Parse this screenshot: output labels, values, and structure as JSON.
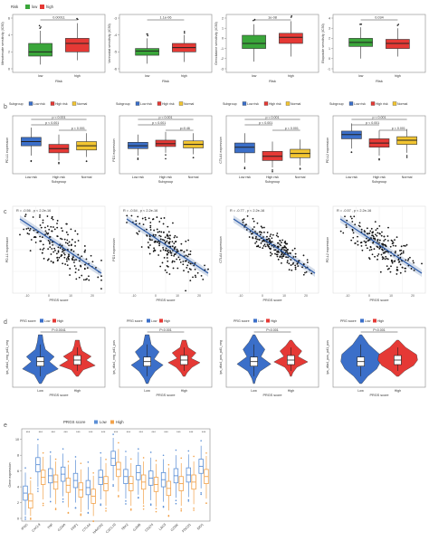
{
  "row_a": {
    "legend_title": "Risk",
    "legend_low": "low",
    "legend_high": "high",
    "xlabel": "Risk",
    "categories": [
      "low",
      "high"
    ],
    "colors": [
      "#3aa63a",
      "#e53935"
    ],
    "panels": [
      {
        "ylabel": "Mesotrexate sensitivity (IC50)",
        "pval": "0.00011",
        "ylim": [
          0,
          6
        ],
        "ticks": [
          0,
          2,
          4,
          6
        ],
        "boxes": [
          [
            0.5,
            1.5,
            2.0,
            3.0,
            4.5
          ],
          [
            1.0,
            2.0,
            3.0,
            3.6,
            5.4
          ]
        ]
      },
      {
        "ylabel": "Vorinostat sensitivity (IC50)",
        "pval": "1.1e-06",
        "ylim": [
          -6,
          -3
        ],
        "ticks": [
          -6,
          -5,
          -4,
          -3
        ],
        "boxes": [
          [
            -5.7,
            -5.2,
            -4.95,
            -4.8,
            -4.2
          ],
          [
            -5.6,
            -5.0,
            -4.75,
            -4.5,
            -4.0
          ]
        ]
      },
      {
        "ylabel": "Gemcitabine sensitivity (IC50)",
        "pval": "1e-08",
        "ylim": [
          -3,
          2
        ],
        "ticks": [
          -3,
          -2,
          -1,
          0,
          1,
          2
        ],
        "boxes": [
          [
            -2.3,
            -1.0,
            -0.5,
            0.3,
            1.4
          ],
          [
            -1.8,
            -0.5,
            0.1,
            0.5,
            1.7
          ]
        ]
      },
      {
        "ylabel": "Etoposide sensitivity (IC50)",
        "pval": "0.034",
        "ylim": [
          -1,
          4
        ],
        "ticks": [
          -1,
          0,
          1,
          2,
          3,
          4
        ],
        "boxes": [
          [
            0,
            1.2,
            1.6,
            2.0,
            3.1
          ],
          [
            0.2,
            1.0,
            1.5,
            1.9,
            3.0
          ]
        ]
      }
    ]
  },
  "row_b": {
    "legend_title": "Subgroup",
    "legend_labels": [
      "Low risk",
      "High risk",
      "Normal"
    ],
    "categories": [
      "Low risk",
      "High risk",
      "Normal"
    ],
    "xlabel": "Subgroup",
    "colors": [
      "#3b6fc9",
      "#e53935",
      "#f2c531"
    ],
    "panels": [
      {
        "ylabel": "PD-L1 expression",
        "pvals": [
          "p < 0.001",
          "p < 0.001",
          "p < 0.001"
        ],
        "boxes": [
          [
            2.2,
            3.6,
            4.2,
            4.8,
            6.2
          ],
          [
            1.5,
            2.6,
            3.2,
            3.8,
            5.2
          ],
          [
            2.0,
            3.0,
            3.6,
            4.2,
            5.4
          ]
        ]
      },
      {
        "ylabel": "PD1 expression",
        "pvals": [
          "p < 0.001",
          "p < 0.001",
          "p=0.46"
        ],
        "boxes": [
          [
            2.2,
            3.2,
            3.6,
            4.1,
            5.2
          ],
          [
            2.6,
            3.5,
            3.9,
            4.4,
            5.6
          ],
          [
            2.4,
            3.3,
            3.8,
            4.3,
            5.4
          ]
        ]
      },
      {
        "ylabel": "CTLA4 expression",
        "pvals": [
          "p < 0.001",
          "p < 0.001",
          "p < 0.001"
        ],
        "boxes": [
          [
            1.2,
            2.6,
            3.4,
            4.0,
            5.4
          ],
          [
            0.5,
            1.5,
            2.1,
            2.8,
            4.2
          ],
          [
            0.8,
            1.9,
            2.5,
            3.1,
            4.5
          ]
        ]
      },
      {
        "ylabel": "PD-L2 expression",
        "pvals": [
          "p < 0.001",
          "p < 0.001",
          "p < 0.001"
        ],
        "boxes": [
          [
            3.2,
            4.6,
            5.2,
            5.7,
            6.8
          ],
          [
            2.2,
            3.4,
            4.0,
            4.6,
            5.8
          ],
          [
            2.6,
            3.8,
            4.4,
            4.9,
            6.0
          ]
        ]
      }
    ]
  },
  "row_c": {
    "xlabel": "PRGS score",
    "xticks": [
      "-10",
      "0",
      "10",
      "20"
    ],
    "panels": [
      {
        "ylabel": "PD-L1 expression",
        "stat": "R = -0.56 , p < 2.2e-16"
      },
      {
        "ylabel": "PD1 expression",
        "stat": "R = -0.54 , p < 2.2e-16"
      },
      {
        "ylabel": "CTLA4 expression",
        "stat": "R = -0.77 , p < 2.2e-16"
      },
      {
        "ylabel": "PD-L2 expression",
        "stat": "R = -0.57 , p < 2.2e-16"
      }
    ]
  },
  "row_d": {
    "legend_title": "PRG score",
    "legend_low": "Low",
    "legend_high": "High",
    "xlabel": "PRGS score",
    "categories": [
      "Low",
      "High"
    ],
    "colors": [
      "#3b6fc9",
      "#e53935"
    ],
    "panels": [
      {
        "ylabel": "ips_ctla4_neg_pd1_neg",
        "pval": "P=0.0041"
      },
      {
        "ylabel": "ips_ctla4_neg_pd1_pos",
        "pval": "P<0.001"
      },
      {
        "ylabel": "ips_ctla4_pos_pd1_neg",
        "pval": "P<0.001"
      },
      {
        "ylabel": "ips_ctla4_pos_pd1_pos",
        "pval": "P<0.001"
      }
    ]
  },
  "row_e": {
    "legend_title": "PRGS score",
    "legend_low": "Low",
    "legend_high": "High",
    "ylabel": "Gene expression",
    "yticks": [
      "0",
      "2",
      "4",
      "6",
      "8",
      "10"
    ],
    "colors": [
      "#5b8fd6",
      "#f2a24a"
    ],
    "genes": [
      "IFNG",
      "CXCL9",
      "TNF",
      "GZMA",
      "PRF1",
      "CTLA4",
      "HAVCR2",
      "CXCL10",
      "TBX2",
      "GZMB",
      "CD274",
      "LAG3",
      "GZMK",
      "PDCD1",
      "IDO1"
    ],
    "stars": [
      "***",
      "***",
      "***",
      "***",
      "***",
      "***",
      "***",
      "***",
      "***",
      "***",
      "***",
      "***",
      "***",
      "***",
      "***"
    ]
  },
  "chart_data": [
    {
      "type": "box",
      "title": "",
      "ylabel": "Mesotrexate sensitivity (IC50)",
      "categories": [
        "low",
        "high"
      ],
      "p": "0.00011"
    },
    {
      "type": "box",
      "title": "",
      "ylabel": "Vorinostat sensitivity (IC50)",
      "categories": [
        "low",
        "high"
      ],
      "p": "1.1e-06"
    },
    {
      "type": "box",
      "title": "",
      "ylabel": "Gemcitabine sensitivity (IC50)",
      "categories": [
        "low",
        "high"
      ],
      "p": "1e-08"
    },
    {
      "type": "box",
      "title": "",
      "ylabel": "Etoposide sensitivity (IC50)",
      "categories": [
        "low",
        "high"
      ],
      "p": "0.034"
    },
    {
      "type": "scatter",
      "xlabel": "PRGS score",
      "ylabel": "PD-L1 expression",
      "R": -0.56
    },
    {
      "type": "scatter",
      "xlabel": "PRGS score",
      "ylabel": "PD1 expression",
      "R": -0.54
    },
    {
      "type": "scatter",
      "xlabel": "PRGS score",
      "ylabel": "CTLA4 expression",
      "R": -0.77
    },
    {
      "type": "scatter",
      "xlabel": "PRGS score",
      "ylabel": "PD-L2 expression",
      "R": -0.57
    },
    {
      "type": "box",
      "ylabel": "Gene expression",
      "categories": [
        "IFNG",
        "CXCL9",
        "TNF",
        "GZMA",
        "PRF1",
        "CTLA4",
        "HAVCR2",
        "CXCL10",
        "TBX2",
        "GZMB",
        "CD274",
        "LAG3",
        "GZMK",
        "PDCD1",
        "IDO1"
      ],
      "series": [
        {
          "name": "Low",
          "medians": [
            3.2,
            6.8,
            5.4,
            5.6,
            4.8,
            3.9,
            5.2,
            7.6,
            5.3,
            5.8,
            5.1,
            4.9,
            5.4,
            5.5,
            6.6
          ]
        },
        {
          "name": "High",
          "medians": [
            2.2,
            5.2,
            4.6,
            4.2,
            3.6,
            2.8,
            4.4,
            6.2,
            4.4,
            4.6,
            4.3,
            3.8,
            4.4,
            4.6,
            5.3
          ]
        }
      ]
    }
  ]
}
